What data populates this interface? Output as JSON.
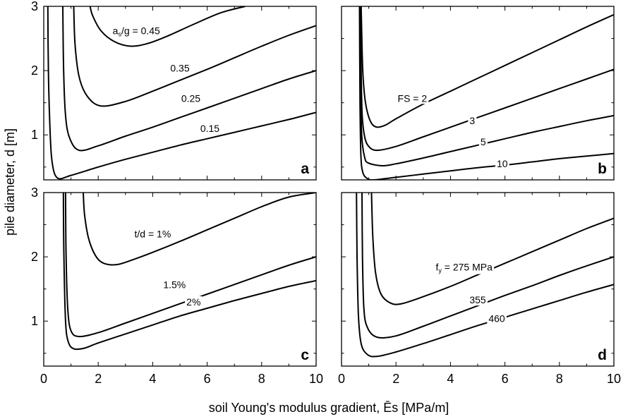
{
  "figure": {
    "xlabel": "soil Young's modulus gradient, Ēs [MPa/m]",
    "ylabel": "pile diameter, d [m]",
    "x_ticks": [
      "0",
      "2",
      "4",
      "6",
      "8",
      "10"
    ],
    "y_ticks": [
      "1",
      "2",
      "3"
    ]
  },
  "chart_data": [
    {
      "type": "line",
      "panel": "a",
      "xlabel": "soil Young's modulus gradient, Ēs [MPa/m]",
      "ylabel": "pile diameter, d [m]",
      "xlim": [
        0,
        10
      ],
      "ylim": [
        0.3,
        3
      ],
      "grid": false,
      "series": [
        {
          "label": "as/g = 0.45",
          "x": [
            1.7,
            1.8,
            2.1,
            2.6,
            3.2,
            3.8,
            4.5,
            5.5,
            6.5,
            7.4
          ],
          "y": [
            3.0,
            2.85,
            2.62,
            2.45,
            2.38,
            2.42,
            2.53,
            2.72,
            2.9,
            3.0
          ]
        },
        {
          "label": "0.35",
          "x": [
            1.1,
            1.15,
            1.3,
            1.6,
            2.1,
            3.0,
            4.0,
            5.0,
            6.0,
            7.0,
            8.0,
            9.0,
            10.0
          ],
          "y": [
            3.0,
            2.4,
            1.9,
            1.6,
            1.45,
            1.52,
            1.68,
            1.85,
            2.02,
            2.2,
            2.38,
            2.55,
            2.7
          ]
        },
        {
          "label": "0.25",
          "x": [
            0.7,
            0.73,
            0.8,
            0.95,
            1.3,
            2.0,
            3.0,
            4.0,
            5.0,
            6.0,
            7.0,
            8.0,
            9.0,
            10.0
          ],
          "y": [
            3.0,
            2.0,
            1.3,
            0.95,
            0.76,
            0.83,
            0.98,
            1.12,
            1.27,
            1.42,
            1.57,
            1.72,
            1.87,
            2.0
          ]
        },
        {
          "label": "0.15",
          "x": [
            0.15,
            0.17,
            0.22,
            0.3,
            0.5,
            1.0,
            2.0,
            3.0,
            4.0,
            5.0,
            6.0,
            7.0,
            8.0,
            9.0,
            10.0
          ],
          "y": [
            3.0,
            2.0,
            1.2,
            0.6,
            0.33,
            0.37,
            0.5,
            0.62,
            0.73,
            0.84,
            0.94,
            1.04,
            1.14,
            1.24,
            1.35
          ]
        }
      ],
      "contour_labels": [
        {
          "text": "a",
          "sub": "s",
          "rest": "/g = 0.45",
          "x": 3.4,
          "y": 2.62
        },
        {
          "text": "0.35",
          "x": 5.0,
          "y": 2.04
        },
        {
          "text": "0.25",
          "x": 5.4,
          "y": 1.57
        },
        {
          "text": "0.15",
          "x": 6.1,
          "y": 1.1
        }
      ],
      "panel_label": "a"
    },
    {
      "type": "line",
      "panel": "b",
      "xlim": [
        0,
        10
      ],
      "ylim": [
        0.3,
        3
      ],
      "grid": false,
      "series": [
        {
          "label": "FS = 2",
          "x": [
            0.72,
            0.74,
            0.78,
            0.85,
            0.95,
            1.1,
            1.3,
            1.6,
            2.0,
            3.0,
            4.0,
            5.0,
            6.0,
            7.0,
            8.0,
            9.0,
            10.0
          ],
          "y": [
            3.0,
            2.6,
            2.0,
            1.6,
            1.35,
            1.18,
            1.12,
            1.15,
            1.25,
            1.48,
            1.68,
            1.88,
            2.08,
            2.28,
            2.48,
            2.68,
            2.87
          ]
        },
        {
          "label": "3",
          "x": [
            0.7,
            0.72,
            0.76,
            0.85,
            1.0,
            1.3,
            2.0,
            3.0,
            4.0,
            5.0,
            6.0,
            7.0,
            8.0,
            9.0,
            10.0
          ],
          "y": [
            3.0,
            2.0,
            1.3,
            0.97,
            0.82,
            0.76,
            0.82,
            0.97,
            1.12,
            1.27,
            1.42,
            1.57,
            1.72,
            1.87,
            2.02
          ]
        },
        {
          "label": "5",
          "x": [
            0.68,
            0.7,
            0.74,
            0.85,
            1.0,
            1.5,
            2.0,
            3.0,
            4.0,
            5.0,
            6.0,
            7.0,
            8.0,
            9.0,
            10.0
          ],
          "y": [
            3.0,
            1.8,
            1.0,
            0.65,
            0.56,
            0.52,
            0.55,
            0.64,
            0.74,
            0.84,
            0.94,
            1.04,
            1.13,
            1.22,
            1.3
          ]
        },
        {
          "label": "10",
          "x": [
            0.66,
            0.68,
            0.71,
            0.78,
            0.95,
            1.2,
            2.0,
            3.0,
            4.0,
            5.0,
            6.0,
            7.0,
            8.0,
            9.0,
            10.0
          ],
          "y": [
            3.0,
            1.5,
            0.7,
            0.42,
            0.32,
            0.3,
            0.34,
            0.39,
            0.44,
            0.49,
            0.53,
            0.58,
            0.63,
            0.67,
            0.71
          ]
        }
      ],
      "contour_labels": [
        {
          "text": "FS = 2",
          "x": 2.6,
          "y": 1.57
        },
        {
          "text": "3",
          "x": 4.8,
          "y": 1.22
        },
        {
          "text": "5",
          "x": 5.2,
          "y": 0.89
        },
        {
          "text": "10",
          "x": 5.9,
          "y": 0.55
        }
      ],
      "panel_label": "b"
    },
    {
      "type": "line",
      "panel": "c",
      "xlim": [
        0,
        10
      ],
      "ylim": [
        0.3,
        3
      ],
      "grid": false,
      "series": [
        {
          "label": "t/d = 1%",
          "x": [
            1.45,
            1.5,
            1.65,
            1.9,
            2.2,
            2.7,
            3.3,
            4.0,
            5.0,
            6.0,
            7.0,
            8.0,
            9.0,
            10.0
          ],
          "y": [
            3.0,
            2.65,
            2.28,
            2.02,
            1.9,
            1.88,
            1.96,
            2.07,
            2.24,
            2.42,
            2.6,
            2.78,
            2.93,
            3.0
          ]
        },
        {
          "label": "1.5%",
          "x": [
            0.8,
            0.82,
            0.88,
            1.0,
            1.3,
            2.0,
            3.0,
            4.0,
            5.0,
            6.0,
            7.0,
            8.0,
            9.0,
            10.0
          ],
          "y": [
            3.0,
            2.0,
            1.2,
            0.85,
            0.76,
            0.82,
            0.97,
            1.12,
            1.27,
            1.42,
            1.57,
            1.72,
            1.87,
            2.0
          ]
        },
        {
          "label": "2%",
          "x": [
            0.72,
            0.74,
            0.8,
            0.9,
            1.1,
            1.5,
            2.0,
            3.0,
            4.0,
            5.0,
            6.0,
            7.0,
            8.0,
            9.0,
            10.0
          ],
          "y": [
            3.0,
            2.0,
            1.0,
            0.68,
            0.57,
            0.58,
            0.66,
            0.8,
            0.94,
            1.08,
            1.2,
            1.32,
            1.43,
            1.54,
            1.63
          ]
        }
      ],
      "contour_labels": [
        {
          "text": "t/d = 1%",
          "x": 4.0,
          "y": 2.36
        },
        {
          "text": "1.5%",
          "x": 4.8,
          "y": 1.57
        },
        {
          "text": "2%",
          "x": 5.5,
          "y": 1.3
        }
      ],
      "panel_label": "c"
    },
    {
      "type": "line",
      "panel": "d",
      "xlim": [
        0,
        10
      ],
      "ylim": [
        0.3,
        3
      ],
      "grid": false,
      "series": [
        {
          "label": "fy = 275 MPa",
          "x": [
            1.1,
            1.15,
            1.25,
            1.45,
            1.8,
            2.2,
            3.0,
            4.0,
            5.0,
            6.0,
            7.0,
            8.0,
            9.0,
            10.0
          ],
          "y": [
            3.0,
            2.3,
            1.75,
            1.42,
            1.28,
            1.27,
            1.38,
            1.54,
            1.72,
            1.9,
            2.08,
            2.26,
            2.44,
            2.6
          ]
        },
        {
          "label": "355",
          "x": [
            0.75,
            0.77,
            0.82,
            0.95,
            1.3,
            2.0,
            3.0,
            4.0,
            5.0,
            6.0,
            7.0,
            8.0,
            9.0,
            10.0
          ],
          "y": [
            3.0,
            2.0,
            1.2,
            0.9,
            0.75,
            0.77,
            0.92,
            1.08,
            1.24,
            1.4,
            1.55,
            1.71,
            1.86,
            2.0
          ]
        },
        {
          "label": "460",
          "x": [
            0.55,
            0.57,
            0.62,
            0.72,
            0.95,
            1.3,
            2.0,
            3.0,
            4.0,
            5.0,
            6.0,
            7.0,
            8.0,
            9.0,
            10.0
          ],
          "y": [
            3.0,
            2.0,
            1.1,
            0.65,
            0.48,
            0.45,
            0.52,
            0.65,
            0.79,
            0.93,
            1.06,
            1.19,
            1.32,
            1.45,
            1.57
          ]
        }
      ],
      "contour_labels": [
        {
          "text": "f",
          "sub": "y",
          "rest": " = 275 MPa",
          "x": 4.5,
          "y": 1.84
        },
        {
          "text": "355",
          "x": 5.0,
          "y": 1.33
        },
        {
          "text": "460",
          "x": 5.7,
          "y": 1.04
        }
      ],
      "panel_label": "d"
    }
  ]
}
